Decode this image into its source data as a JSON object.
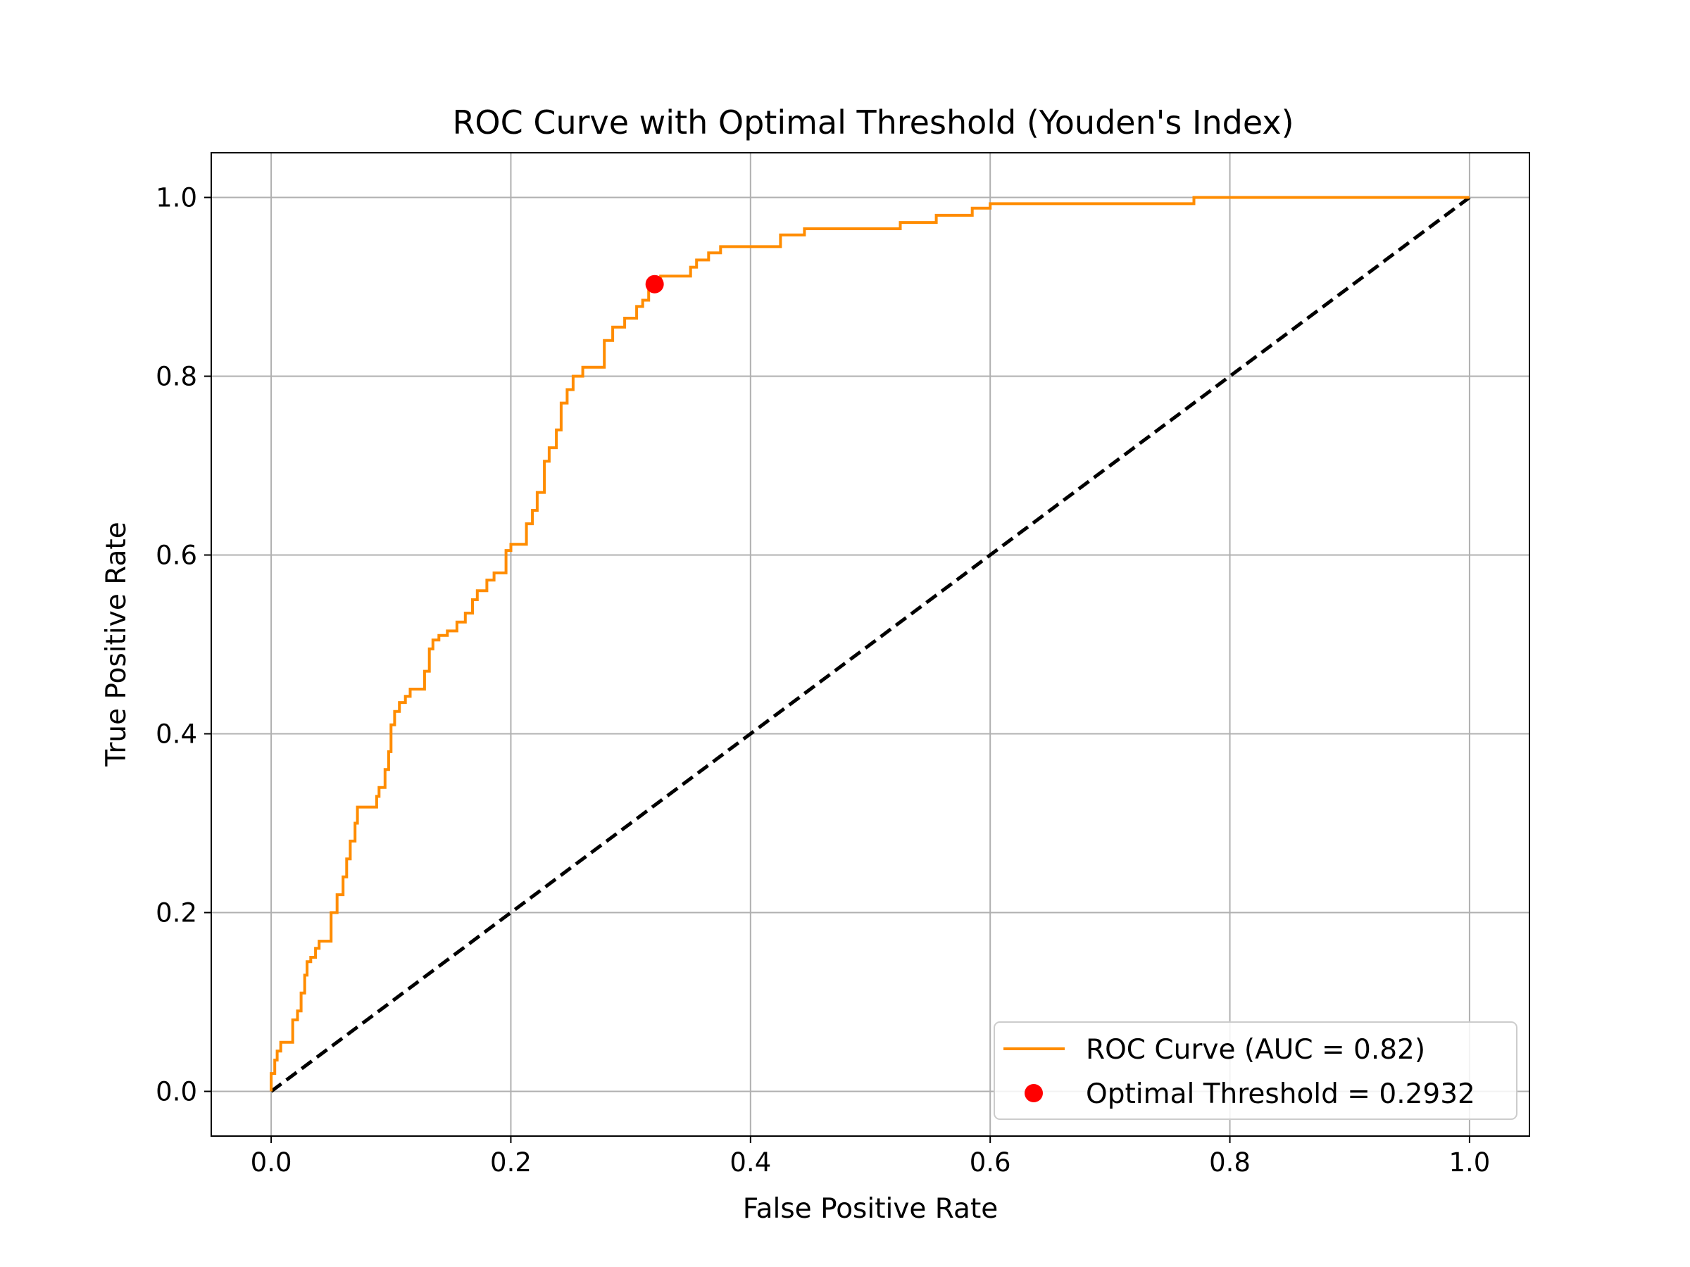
{
  "chart_data": {
    "type": "line",
    "title": "ROC Curve with Optimal Threshold (Youden's Index)",
    "xlabel": "False Positive Rate",
    "ylabel": "True Positive Rate",
    "xlim": [
      -0.05,
      1.05
    ],
    "ylim": [
      -0.05,
      1.05
    ],
    "x_ticks": [
      "0.0",
      "0.2",
      "0.4",
      "0.6",
      "0.8",
      "1.0"
    ],
    "y_ticks": [
      "0.0",
      "0.2",
      "0.4",
      "0.6",
      "0.8",
      "1.0"
    ],
    "grid": true,
    "legend_position": "lower right",
    "series": [
      {
        "name": "ROC Curve (AUC = 0.82)",
        "kind": "step-line",
        "color": "#ff8c00",
        "points": [
          [
            0.0,
            0.0
          ],
          [
            0.003,
            0.02
          ],
          [
            0.005,
            0.035
          ],
          [
            0.008,
            0.045
          ],
          [
            0.01,
            0.055
          ],
          [
            0.018,
            0.055
          ],
          [
            0.018,
            0.075
          ],
          [
            0.022,
            0.08
          ],
          [
            0.025,
            0.09
          ],
          [
            0.028,
            0.11
          ],
          [
            0.03,
            0.13
          ],
          [
            0.033,
            0.145
          ],
          [
            0.037,
            0.15
          ],
          [
            0.04,
            0.16
          ],
          [
            0.042,
            0.168
          ],
          [
            0.05,
            0.168
          ],
          [
            0.05,
            0.19
          ],
          [
            0.055,
            0.2
          ],
          [
            0.06,
            0.22
          ],
          [
            0.063,
            0.24
          ],
          [
            0.066,
            0.26
          ],
          [
            0.07,
            0.28
          ],
          [
            0.072,
            0.3
          ],
          [
            0.078,
            0.318
          ],
          [
            0.088,
            0.318
          ],
          [
            0.09,
            0.33
          ],
          [
            0.095,
            0.34
          ],
          [
            0.098,
            0.36
          ],
          [
            0.1,
            0.38
          ],
          [
            0.103,
            0.41
          ],
          [
            0.107,
            0.425
          ],
          [
            0.112,
            0.435
          ],
          [
            0.116,
            0.442
          ],
          [
            0.122,
            0.45
          ],
          [
            0.128,
            0.45
          ],
          [
            0.132,
            0.47
          ],
          [
            0.135,
            0.495
          ],
          [
            0.14,
            0.505
          ],
          [
            0.147,
            0.51
          ],
          [
            0.155,
            0.515
          ],
          [
            0.162,
            0.525
          ],
          [
            0.168,
            0.535
          ],
          [
            0.172,
            0.55
          ],
          [
            0.18,
            0.56
          ],
          [
            0.186,
            0.572
          ],
          [
            0.196,
            0.58
          ],
          [
            0.2,
            0.605
          ],
          [
            0.213,
            0.612
          ],
          [
            0.218,
            0.635
          ],
          [
            0.222,
            0.65
          ],
          [
            0.228,
            0.67
          ],
          [
            0.232,
            0.705
          ],
          [
            0.238,
            0.72
          ],
          [
            0.242,
            0.74
          ],
          [
            0.247,
            0.77
          ],
          [
            0.252,
            0.785
          ],
          [
            0.26,
            0.8
          ],
          [
            0.278,
            0.81
          ],
          [
            0.285,
            0.84
          ],
          [
            0.295,
            0.855
          ],
          [
            0.305,
            0.865
          ],
          [
            0.31,
            0.878
          ],
          [
            0.315,
            0.885
          ],
          [
            0.318,
            0.903
          ],
          [
            0.325,
            0.91
          ],
          [
            0.35,
            0.912
          ],
          [
            0.355,
            0.922
          ],
          [
            0.365,
            0.93
          ],
          [
            0.375,
            0.938
          ],
          [
            0.425,
            0.945
          ],
          [
            0.445,
            0.958
          ],
          [
            0.525,
            0.965
          ],
          [
            0.555,
            0.972
          ],
          [
            0.585,
            0.98
          ],
          [
            0.6,
            0.988
          ],
          [
            0.625,
            0.993
          ],
          [
            0.77,
            0.993
          ],
          [
            0.77,
            1.0
          ],
          [
            1.0,
            1.0
          ]
        ]
      },
      {
        "name": "",
        "kind": "diagonal",
        "color": "#000000",
        "dashed": true,
        "points": [
          [
            0.0,
            0.0
          ],
          [
            1.0,
            1.0
          ]
        ]
      },
      {
        "name": "Optimal Threshold = 0.2932",
        "kind": "marker",
        "color": "#ff0000",
        "points": [
          [
            0.32,
            0.903
          ]
        ]
      }
    ]
  }
}
